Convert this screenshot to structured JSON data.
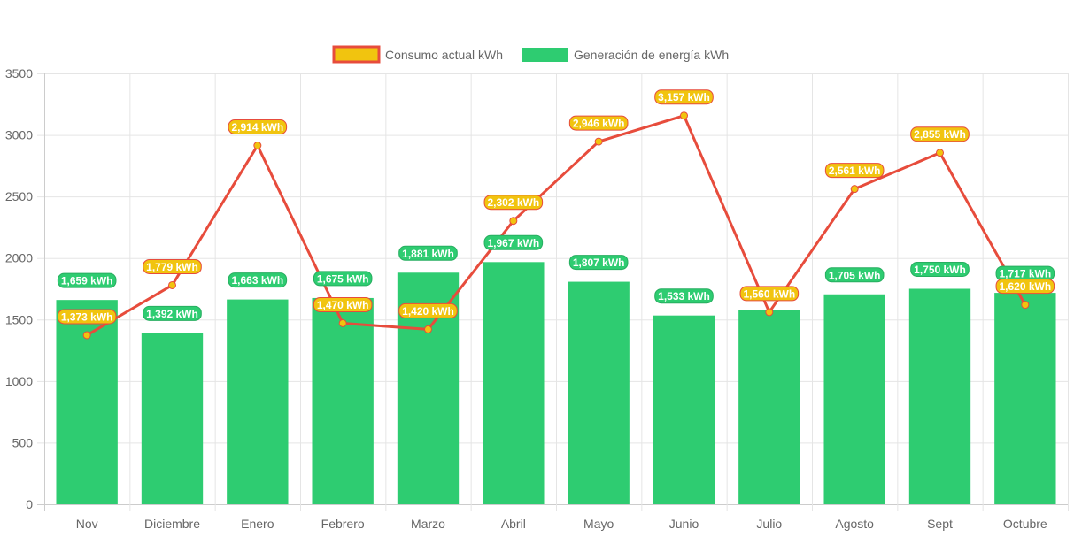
{
  "chart_data": {
    "type": "bar",
    "title": "",
    "xlabel": "",
    "ylabel": "",
    "ylim": [
      0,
      3500
    ],
    "yticks": [
      0,
      500,
      1000,
      1500,
      2000,
      2500,
      3000,
      3500
    ],
    "grid": true,
    "legend_position": "top",
    "categories": [
      "Nov",
      "Diciembre",
      "Enero",
      "Febrero",
      "Marzo",
      "Abril",
      "Mayo",
      "Junio",
      "Julio",
      "Agosto",
      "Sept",
      "Octubre"
    ],
    "series": [
      {
        "name": "Consumo actual kWh",
        "type": "line",
        "color": "#e74c3c",
        "point_color": "#f1c40f",
        "label_fill": "#f1c40f",
        "values": [
          1373,
          1779,
          2914,
          1470,
          1420,
          2302,
          2946,
          3157,
          1560,
          2561,
          2855,
          1620
        ],
        "labels": [
          "1,373 kWh",
          "1,779 kWh",
          "2,914 kWh",
          "1,470 kWh",
          "1,420 kWh",
          "2,302 kWh",
          "2,946 kWh",
          "3,157 kWh",
          "1,560 kWh",
          "2,561 kWh",
          "2,855 kWh",
          "1,620 kWh"
        ]
      },
      {
        "name": "Generación de energía kWh",
        "type": "bar",
        "color": "#2ecc71",
        "label_fill": "#2ecc71",
        "values": [
          1659,
          1392,
          1663,
          1675,
          1881,
          1967,
          1807,
          1533,
          1580,
          1705,
          1750,
          1717
        ],
        "labels": [
          "1,659 kWh",
          "1,392 kWh",
          "1,663 kWh",
          "1,675 kWh",
          "1,881 kWh",
          "1,967 kWh",
          "1,807 kWh",
          "1,533 kWh",
          "",
          "1,705 kWh",
          "1,750 kWh",
          "1,717 kWh"
        ]
      }
    ]
  }
}
